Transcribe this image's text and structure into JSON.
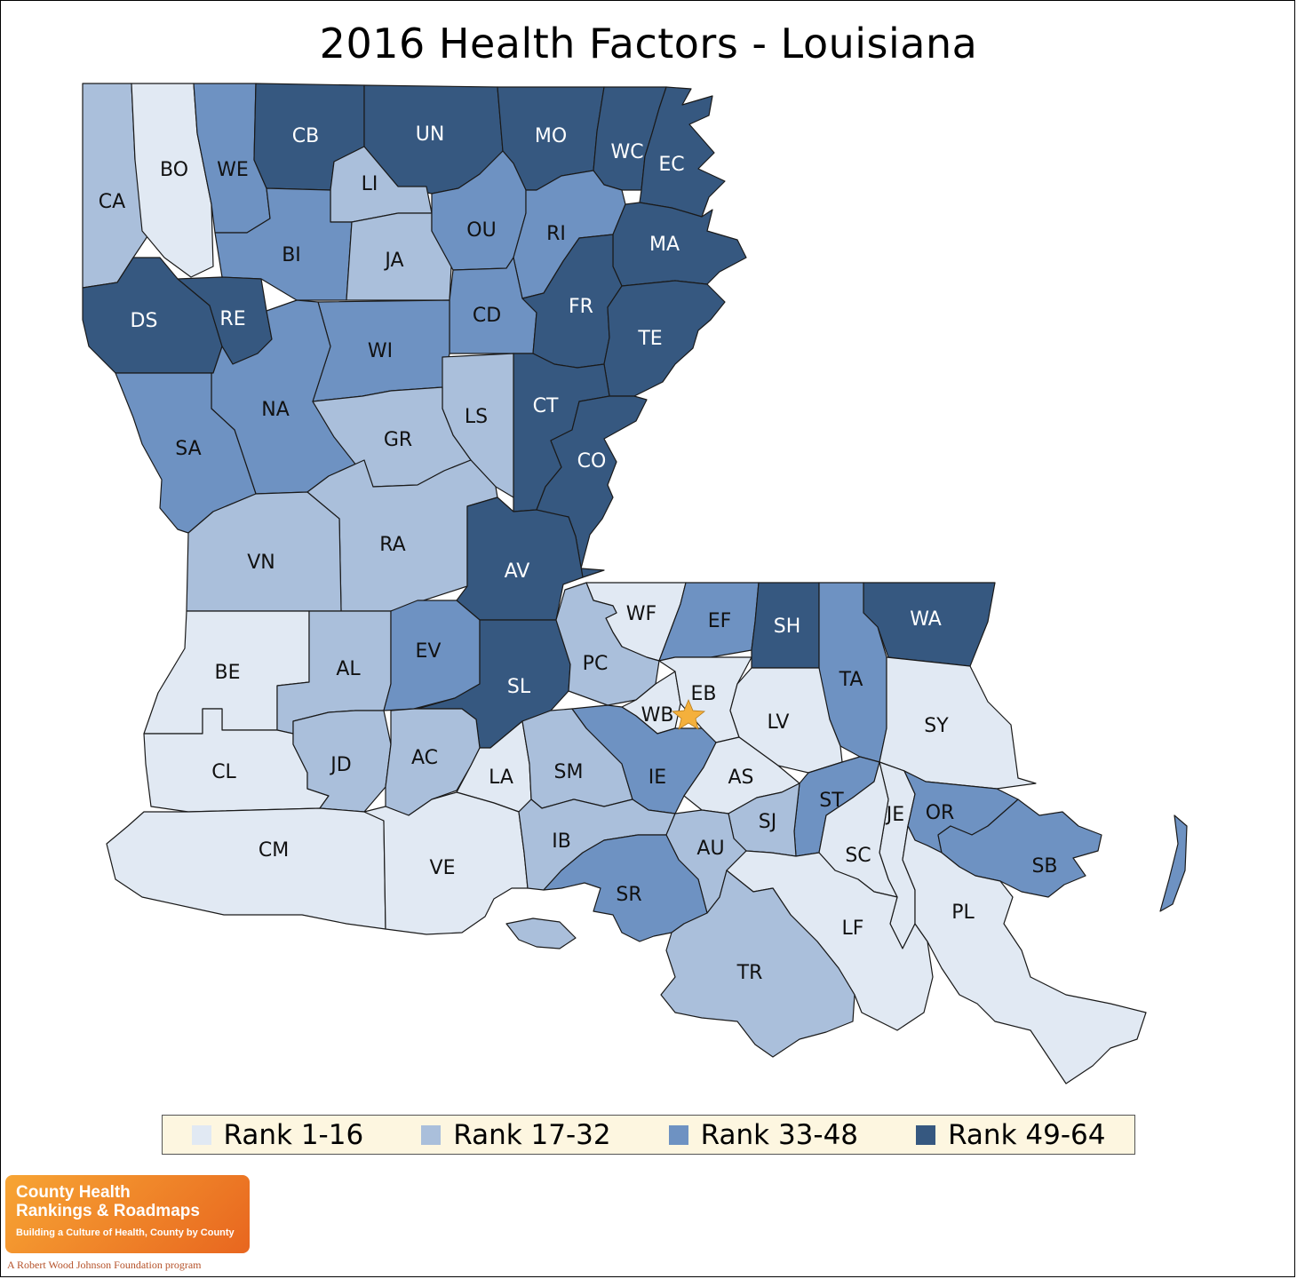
{
  "title": "2016 Health Factors - Louisiana",
  "colors": {
    "rank_1_16": "#e1e9f3",
    "rank_17_32": "#aabfdb",
    "rank_33_48": "#6e92c2",
    "rank_49_64": "#365880",
    "background": "#ffffff",
    "legend_bg": "#fdf6e0",
    "star": "#f4b03c"
  },
  "legend": [
    {
      "label": "Rank 1-16",
      "color_key": "rank_1_16"
    },
    {
      "label": "Rank 17-32",
      "color_key": "rank_17_32"
    },
    {
      "label": "Rank 33-48",
      "color_key": "rank_33_48"
    },
    {
      "label": "Rank 49-64",
      "color_key": "rank_49_64"
    }
  ],
  "parishes": [
    {
      "code": "CA",
      "rank_group": 2
    },
    {
      "code": "BO",
      "rank_group": 1
    },
    {
      "code": "WE",
      "rank_group": 3
    },
    {
      "code": "CB",
      "rank_group": 4
    },
    {
      "code": "UN",
      "rank_group": 4
    },
    {
      "code": "MO",
      "rank_group": 4
    },
    {
      "code": "WC",
      "rank_group": 4
    },
    {
      "code": "EC",
      "rank_group": 4
    },
    {
      "code": "LI",
      "rank_group": 2
    },
    {
      "code": "BI",
      "rank_group": 3
    },
    {
      "code": "JA",
      "rank_group": 2
    },
    {
      "code": "OU",
      "rank_group": 3
    },
    {
      "code": "RI",
      "rank_group": 3
    },
    {
      "code": "MA",
      "rank_group": 4
    },
    {
      "code": "DS",
      "rank_group": 4
    },
    {
      "code": "RE",
      "rank_group": 4
    },
    {
      "code": "CD",
      "rank_group": 3
    },
    {
      "code": "FR",
      "rank_group": 4
    },
    {
      "code": "TE",
      "rank_group": 4
    },
    {
      "code": "WI",
      "rank_group": 3
    },
    {
      "code": "NA",
      "rank_group": 3
    },
    {
      "code": "CT",
      "rank_group": 4
    },
    {
      "code": "LS",
      "rank_group": 2
    },
    {
      "code": "GR",
      "rank_group": 2
    },
    {
      "code": "SA",
      "rank_group": 3
    },
    {
      "code": "CO",
      "rank_group": 4
    },
    {
      "code": "RA",
      "rank_group": 2
    },
    {
      "code": "VN",
      "rank_group": 2
    },
    {
      "code": "AV",
      "rank_group": 4
    },
    {
      "code": "WF",
      "rank_group": 1
    },
    {
      "code": "EF",
      "rank_group": 3
    },
    {
      "code": "SH",
      "rank_group": 4
    },
    {
      "code": "WA",
      "rank_group": 4
    },
    {
      "code": "BE",
      "rank_group": 1
    },
    {
      "code": "AL",
      "rank_group": 2
    },
    {
      "code": "EV",
      "rank_group": 3
    },
    {
      "code": "SL",
      "rank_group": 4
    },
    {
      "code": "PC",
      "rank_group": 2
    },
    {
      "code": "EB",
      "rank_group": 1
    },
    {
      "code": "WB",
      "rank_group": 1
    },
    {
      "code": "LV",
      "rank_group": 1
    },
    {
      "code": "TA",
      "rank_group": 3
    },
    {
      "code": "SY",
      "rank_group": 1
    },
    {
      "code": "CL",
      "rank_group": 1
    },
    {
      "code": "JD",
      "rank_group": 2
    },
    {
      "code": "AC",
      "rank_group": 2
    },
    {
      "code": "LA",
      "rank_group": 1
    },
    {
      "code": "SM",
      "rank_group": 2
    },
    {
      "code": "IE",
      "rank_group": 3
    },
    {
      "code": "AS",
      "rank_group": 1
    },
    {
      "code": "ST",
      "rank_group": 3
    },
    {
      "code": "JE",
      "rank_group": 1
    },
    {
      "code": "OR",
      "rank_group": 3
    },
    {
      "code": "SJ",
      "rank_group": 2
    },
    {
      "code": "SC",
      "rank_group": 1
    },
    {
      "code": "SB",
      "rank_group": 3
    },
    {
      "code": "CM",
      "rank_group": 1
    },
    {
      "code": "VE",
      "rank_group": 1
    },
    {
      "code": "IB",
      "rank_group": 2
    },
    {
      "code": "AU",
      "rank_group": 2
    },
    {
      "code": "SR",
      "rank_group": 3
    },
    {
      "code": "LF",
      "rank_group": 1
    },
    {
      "code": "PL",
      "rank_group": 1
    },
    {
      "code": "TR",
      "rank_group": 2
    }
  ],
  "capital_marker": "star-icon",
  "logo": {
    "line1": "County Health",
    "line2": "Rankings & Roadmaps",
    "tagline": "Building a Culture of Health, County by County",
    "footer": "A Robert Wood Johnson Foundation program"
  }
}
